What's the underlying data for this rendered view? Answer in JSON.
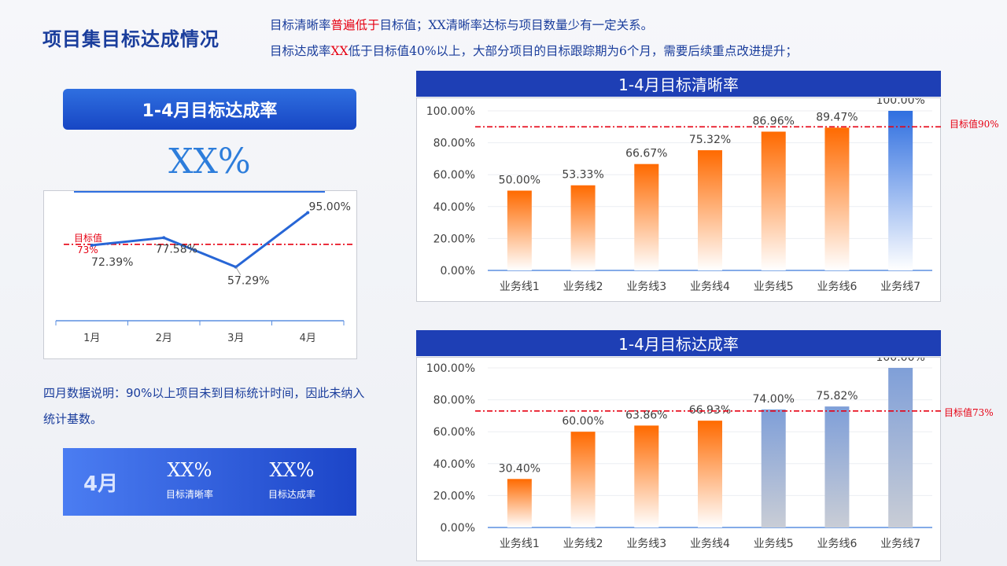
{
  "page_title": "项目集目标达成情况",
  "notes": {
    "line1_a": "目标清晰率",
    "line1_red": "普遍低于",
    "line1_b": "目标值；XX清晰率达标与项目数量少有一定关系。",
    "line2_a": "目标达成率",
    "line2_red": "XX",
    "line2_b": "低于目标值40%以上，大部分项目的目标跟踪期为6个月，需要后续重点改进提升；"
  },
  "left_banner": "1-4月目标达成率",
  "big_rate": "XX%",
  "april_note": "四月数据说明：90%以上项目未到目标统计时间，因此未纳入统计基数。",
  "april_card": {
    "month": "4月",
    "stat1_value": "XX%",
    "stat1_label": "目标清晰率",
    "stat2_value": "XX%",
    "stat2_label": "目标达成率"
  },
  "colors": {
    "orange": "#ff6a00",
    "blue": "#2f6fe0",
    "gray_blue": "#8ea6d8",
    "target_red": "#e60012",
    "header_blue": "#1e3fb5"
  },
  "chart_data": [
    {
      "type": "line",
      "title": "",
      "categories": [
        "1月",
        "2月",
        "3月",
        "4月"
      ],
      "values": [
        72.39,
        77.58,
        57.29,
        95.0
      ],
      "labels": [
        "72.39%",
        "77.58%",
        "57.29%",
        "95.00%"
      ],
      "target": 73,
      "target_label_line1": "目标值",
      "target_label_line2": "73%"
    },
    {
      "type": "bar",
      "title": "1-4月目标清晰率",
      "categories": [
        "业务线1",
        "业务线2",
        "业务线3",
        "业务线4",
        "业务线5",
        "业务线6",
        "业务线7"
      ],
      "values": [
        50.0,
        53.33,
        66.67,
        75.32,
        86.96,
        89.47,
        100.0
      ],
      "labels": [
        "50.00%",
        "53.33%",
        "66.67%",
        "75.32%",
        "86.96%",
        "89.47%",
        "100.00%"
      ],
      "bar_styles": [
        "orange",
        "orange",
        "orange",
        "orange",
        "orange",
        "orange",
        "blue"
      ],
      "ylim": [
        0,
        100
      ],
      "yticks": [
        "0.00%",
        "20.00%",
        "40.00%",
        "60.00%",
        "80.00%",
        "100.00%"
      ],
      "target": 90,
      "target_label": "目标值90%"
    },
    {
      "type": "bar",
      "title": "1-4月目标达成率",
      "categories": [
        "业务线1",
        "业务线2",
        "业务线3",
        "业务线4",
        "业务线5",
        "业务线6",
        "业务线7"
      ],
      "values": [
        30.4,
        60.0,
        63.86,
        66.93,
        74.0,
        75.82,
        100.0
      ],
      "labels": [
        "30.40%",
        "60.00%",
        "63.86%",
        "66.93%",
        "74.00%",
        "75.82%",
        "100.00%"
      ],
      "bar_styles": [
        "orange",
        "orange",
        "orange",
        "orange",
        "gray_blue",
        "gray_blue",
        "gray_blue"
      ],
      "ylim": [
        0,
        100
      ],
      "yticks": [
        "0.00%",
        "20.00%",
        "40.00%",
        "60.00%",
        "80.00%",
        "100.00%"
      ],
      "target": 73,
      "target_label": "目标值73%"
    }
  ]
}
